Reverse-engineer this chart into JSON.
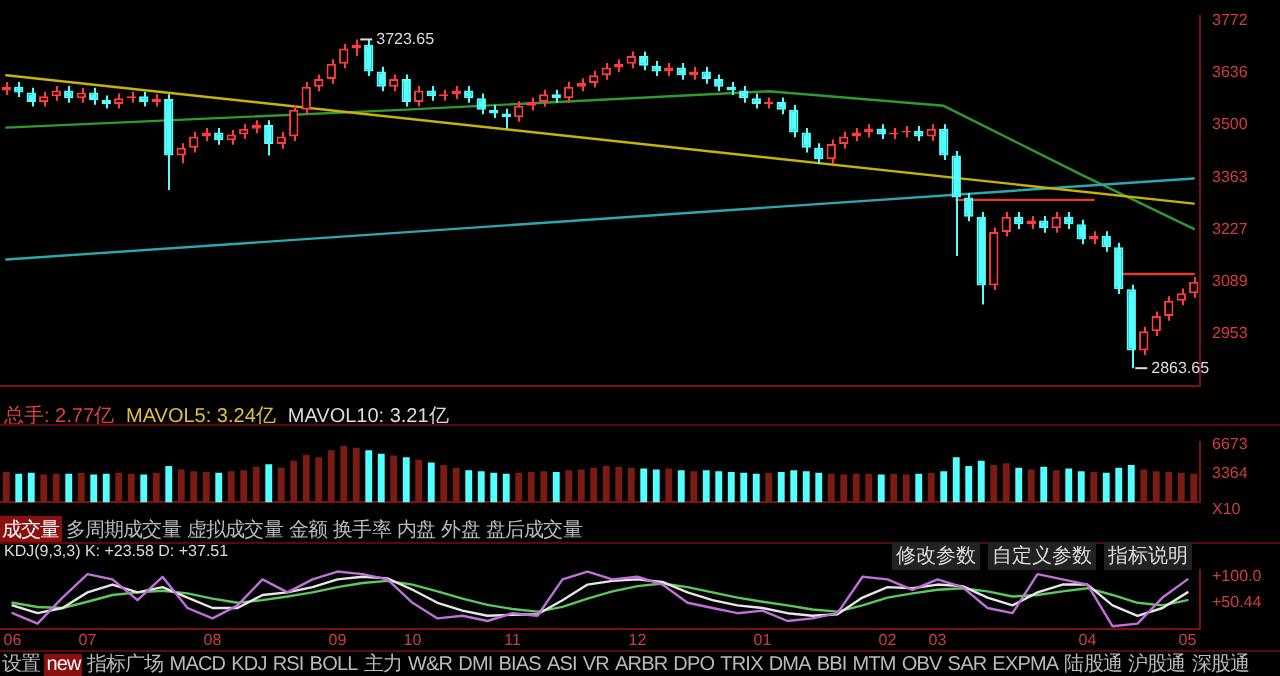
{
  "chart_data": [
    {
      "type": "candlestick",
      "tick_labels": "y",
      "ylim": [
        2816,
        3786
      ],
      "yticks": [
        3772,
        3636,
        3500,
        3363,
        3227,
        3089,
        2953
      ],
      "categories": [
        null,
        null,
        null,
        null,
        null,
        null,
        null,
        null,
        null,
        null,
        null,
        null,
        null,
        null,
        null,
        null,
        null,
        null,
        null,
        null,
        null,
        null,
        null,
        null,
        null,
        null,
        null,
        null,
        null,
        null,
        null,
        null,
        null,
        null,
        null,
        null,
        null,
        null,
        null,
        null,
        null,
        null,
        null,
        null,
        null,
        null,
        null,
        null,
        null,
        null,
        null,
        null,
        null,
        null,
        null,
        null,
        null,
        null,
        null,
        null,
        null,
        null,
        null,
        null,
        null,
        null,
        null,
        null,
        null,
        null,
        null,
        null,
        null,
        null,
        null,
        null,
        null,
        null,
        null,
        null,
        null,
        null,
        null,
        null,
        null,
        null,
        null,
        null,
        null,
        null,
        null,
        null,
        null,
        null,
        null,
        null
      ],
      "ohlc": [
        [
          3590,
          3612,
          3578,
          3600
        ],
        [
          3600,
          3612,
          3573,
          3585
        ],
        [
          3585,
          3597,
          3548,
          3560
        ],
        [
          3560,
          3587,
          3548,
          3575
        ],
        [
          3575,
          3602,
          3563,
          3590
        ],
        [
          3590,
          3602,
          3558,
          3570
        ],
        [
          3570,
          3597,
          3558,
          3585
        ],
        [
          3585,
          3597,
          3553,
          3565
        ],
        [
          3565,
          3577,
          3543,
          3555
        ],
        [
          3555,
          3582,
          3543,
          3570
        ],
        [
          3570,
          3587,
          3558,
          3575
        ],
        [
          3575,
          3587,
          3548,
          3560
        ],
        [
          3560,
          3580,
          3548,
          3568
        ],
        [
          3568,
          3580,
          3330,
          3420
        ],
        [
          3420,
          3452,
          3400,
          3440
        ],
        [
          3440,
          3482,
          3428,
          3470
        ],
        [
          3470,
          3492,
          3458,
          3480
        ],
        [
          3480,
          3492,
          3448,
          3460
        ],
        [
          3460,
          3487,
          3448,
          3475
        ],
        [
          3475,
          3502,
          3463,
          3490
        ],
        [
          3490,
          3512,
          3478,
          3500
        ],
        [
          3500,
          3512,
          3420,
          3450
        ],
        [
          3450,
          3482,
          3438,
          3470
        ],
        [
          3470,
          3552,
          3458,
          3540
        ],
        [
          3540,
          3612,
          3528,
          3600
        ],
        [
          3600,
          3632,
          3588,
          3620
        ],
        [
          3620,
          3672,
          3608,
          3660
        ],
        [
          3660,
          3712,
          3648,
          3700
        ],
        [
          3700,
          3723.65,
          3680,
          3710
        ],
        [
          3710,
          3722,
          3628,
          3640
        ],
        [
          3640,
          3652,
          3588,
          3600
        ],
        [
          3600,
          3632,
          3588,
          3620
        ],
        [
          3620,
          3632,
          3548,
          3560
        ],
        [
          3560,
          3602,
          3548,
          3590
        ],
        [
          3590,
          3602,
          3563,
          3575
        ],
        [
          3575,
          3592,
          3563,
          3580
        ],
        [
          3580,
          3602,
          3568,
          3590
        ],
        [
          3590,
          3602,
          3558,
          3570
        ],
        [
          3570,
          3582,
          3528,
          3540
        ],
        [
          3540,
          3552,
          3518,
          3530
        ],
        [
          3530,
          3542,
          3490,
          3520
        ],
        [
          3520,
          3562,
          3508,
          3550
        ],
        [
          3550,
          3572,
          3538,
          3560
        ],
        [
          3560,
          3592,
          3548,
          3580
        ],
        [
          3580,
          3592,
          3558,
          3570
        ],
        [
          3570,
          3612,
          3558,
          3600
        ],
        [
          3600,
          3622,
          3588,
          3610
        ],
        [
          3610,
          3642,
          3598,
          3630
        ],
        [
          3630,
          3662,
          3618,
          3650
        ],
        [
          3650,
          3672,
          3638,
          3660
        ],
        [
          3660,
          3692,
          3648,
          3680
        ],
        [
          3680,
          3692,
          3643,
          3655
        ],
        [
          3655,
          3667,
          3628,
          3640
        ],
        [
          3640,
          3662,
          3628,
          3650
        ],
        [
          3650,
          3662,
          3618,
          3630
        ],
        [
          3630,
          3652,
          3618,
          3640
        ],
        [
          3640,
          3652,
          3608,
          3620
        ],
        [
          3620,
          3632,
          3588,
          3600
        ],
        [
          3600,
          3612,
          3578,
          3590
        ],
        [
          3590,
          3602,
          3558,
          3570
        ],
        [
          3570,
          3582,
          3543,
          3555
        ],
        [
          3555,
          3572,
          3543,
          3560
        ],
        [
          3560,
          3572,
          3528,
          3540
        ],
        [
          3540,
          3552,
          3468,
          3480
        ],
        [
          3480,
          3492,
          3428,
          3440
        ],
        [
          3440,
          3452,
          3398,
          3410
        ],
        [
          3410,
          3462,
          3398,
          3450
        ],
        [
          3450,
          3482,
          3438,
          3470
        ],
        [
          3470,
          3492,
          3458,
          3480
        ],
        [
          3480,
          3502,
          3468,
          3490
        ],
        [
          3490,
          3502,
          3463,
          3475
        ],
        [
          3475,
          3492,
          3463,
          3480
        ],
        [
          3480,
          3497,
          3468,
          3485
        ],
        [
          3485,
          3497,
          3458,
          3470
        ],
        [
          3470,
          3502,
          3458,
          3490
        ],
        [
          3490,
          3502,
          3408,
          3420
        ],
        [
          3420,
          3432,
          3157,
          3310
        ],
        [
          3310,
          3322,
          3248,
          3260
        ],
        [
          3260,
          3272,
          3030,
          3080
        ],
        [
          3080,
          3232,
          3068,
          3220
        ],
        [
          3220,
          3272,
          3208,
          3260
        ],
        [
          3260,
          3272,
          3228,
          3240
        ],
        [
          3240,
          3262,
          3228,
          3250
        ],
        [
          3250,
          3262,
          3218,
          3230
        ],
        [
          3230,
          3272,
          3218,
          3260
        ],
        [
          3260,
          3272,
          3228,
          3240
        ],
        [
          3240,
          3252,
          3188,
          3200
        ],
        [
          3200,
          3222,
          3188,
          3210
        ],
        [
          3210,
          3222,
          3168,
          3180
        ],
        [
          3180,
          3192,
          3058,
          3070
        ],
        [
          3070,
          3082,
          2863.65,
          2910
        ],
        [
          2910,
          2972,
          2898,
          2960
        ],
        [
          2960,
          3012,
          2948,
          3000
        ],
        [
          3000,
          3052,
          2988,
          3040
        ],
        [
          3040,
          3072,
          3028,
          3060
        ],
        [
          3060,
          3102,
          3048,
          3090
        ]
      ],
      "series": [
        {
          "type": "line",
          "color": "#c8b400",
          "values": [
            3630,
            null,
            null,
            null,
            null,
            null,
            null,
            null,
            null,
            null,
            null,
            null,
            null,
            null,
            null,
            null,
            null,
            null,
            null,
            null,
            null,
            null,
            null,
            null,
            null,
            null,
            null,
            null,
            null,
            null,
            null,
            null,
            null,
            null,
            null,
            null,
            null,
            null,
            null,
            null,
            null,
            null,
            null,
            null,
            null,
            null,
            null,
            null,
            null,
            null,
            null,
            null,
            null,
            null,
            null,
            null,
            null,
            null,
            null,
            null,
            null,
            null,
            null,
            null,
            null,
            null,
            null,
            null,
            null,
            null,
            null,
            null,
            null,
            null,
            null,
            null,
            null,
            null,
            null,
            null,
            null,
            null,
            null,
            null,
            null,
            null,
            null,
            null,
            null,
            null,
            null,
            null,
            null,
            null,
            null,
            3294
          ]
        },
        {
          "type": "line",
          "color": "#2aa8b0",
          "values": [
            3148,
            null,
            null,
            null,
            null,
            null,
            null,
            null,
            null,
            null,
            null,
            null,
            null,
            null,
            null,
            null,
            null,
            null,
            null,
            null,
            null,
            null,
            null,
            null,
            null,
            null,
            null,
            null,
            null,
            null,
            null,
            null,
            null,
            null,
            null,
            null,
            null,
            null,
            null,
            null,
            null,
            null,
            null,
            null,
            null,
            null,
            null,
            null,
            null,
            null,
            null,
            null,
            null,
            null,
            null,
            null,
            null,
            null,
            null,
            null,
            null,
            null,
            null,
            null,
            null,
            null,
            null,
            null,
            null,
            null,
            null,
            null,
            null,
            null,
            null,
            null,
            null,
            null,
            null,
            null,
            null,
            null,
            null,
            null,
            null,
            null,
            null,
            null,
            null,
            null,
            null,
            null,
            null,
            null,
            null,
            3360
          ]
        },
        {
          "type": "line",
          "color": "#2f9a2f",
          "values": [
            3493,
            null,
            null,
            null,
            null,
            null,
            null,
            null,
            null,
            null,
            null,
            null,
            null,
            null,
            null,
            null,
            null,
            null,
            null,
            null,
            null,
            null,
            null,
            null,
            null,
            null,
            null,
            null,
            null,
            null,
            null,
            null,
            3540,
            null,
            null,
            null,
            null,
            null,
            null,
            null,
            null,
            null,
            null,
            null,
            null,
            null,
            null,
            null,
            null,
            null,
            null,
            null,
            null,
            null,
            null,
            null,
            null,
            null,
            null,
            null,
            null,
            3588,
            null,
            null,
            null,
            null,
            null,
            null,
            null,
            null,
            null,
            null,
            null,
            null,
            null,
            3550,
            null,
            null,
            null,
            null,
            null,
            null,
            null,
            null,
            null,
            null,
            3370,
            null,
            null,
            null,
            null,
            null,
            null,
            null,
            null,
            3228
          ]
        },
        {
          "type": "line",
          "color": "#e83a2a",
          "values": [
            null,
            null,
            null,
            null,
            null,
            null,
            null,
            null,
            null,
            null,
            null,
            null,
            null,
            null,
            null,
            null,
            null,
            null,
            null,
            null,
            null,
            null,
            null,
            null,
            null,
            null,
            null,
            null,
            null,
            null,
            null,
            null,
            null,
            null,
            null,
            null,
            null,
            null,
            null,
            null,
            null,
            null,
            null,
            null,
            null,
            null,
            null,
            null,
            null,
            null,
            null,
            null,
            null,
            null,
            null,
            null,
            null,
            null,
            null,
            null,
            null,
            null,
            null,
            null,
            null,
            null,
            null,
            null,
            null,
            null,
            null,
            null,
            null,
            null,
            null,
            null,
            3304,
            null,
            null,
            null,
            null,
            null,
            null,
            null,
            null,
            null,
            null,
            3304,
            null,
            null,
            null,
            null,
            null,
            null,
            null,
            null
          ]
        },
        {
          "type": "line",
          "color": "#e83a2a",
          "values": [
            null,
            null,
            null,
            null,
            null,
            null,
            null,
            null,
            null,
            null,
            null,
            null,
            null,
            null,
            null,
            null,
            null,
            null,
            null,
            null,
            null,
            null,
            null,
            null,
            null,
            null,
            null,
            null,
            null,
            null,
            null,
            null,
            null,
            null,
            null,
            null,
            null,
            null,
            null,
            null,
            null,
            null,
            null,
            null,
            null,
            null,
            null,
            null,
            null,
            null,
            null,
            null,
            null,
            null,
            null,
            null,
            null,
            null,
            null,
            null,
            null,
            null,
            null,
            null,
            null,
            null,
            null,
            null,
            null,
            null,
            null,
            null,
            null,
            null,
            null,
            null,
            null,
            null,
            null,
            null,
            null,
            null,
            null,
            null,
            null,
            null,
            null,
            null,
            null,
            3110,
            null,
            null,
            null,
            null,
            null,
            3110
          ]
        }
      ],
      "annotations": [
        "3723.65",
        "2863.65"
      ]
    },
    {
      "type": "bar",
      "tick_labels": "y",
      "ylim": [
        0,
        7000
      ],
      "yticks": [
        6673,
        3364
      ],
      "categories": [
        null,
        null,
        null,
        null,
        null,
        null,
        null,
        null,
        null,
        null,
        null,
        null,
        null,
        null,
        null,
        null,
        null,
        null,
        null,
        null,
        null,
        null,
        null,
        null,
        null,
        null,
        null,
        null,
        null,
        null,
        null,
        null,
        null,
        null,
        null,
        null,
        null,
        null,
        null,
        null,
        null,
        null,
        null,
        null,
        null,
        null,
        null,
        null,
        null,
        null,
        null,
        null,
        null,
        null,
        null,
        null,
        null,
        null,
        null,
        null,
        null,
        null,
        null,
        null,
        null,
        null,
        null,
        null,
        null,
        null,
        null,
        null,
        null,
        null,
        null,
        null,
        null,
        null,
        null,
        null,
        null,
        null,
        null,
        null,
        null,
        null,
        null,
        null,
        null,
        null,
        null,
        null,
        null,
        null,
        null,
        null
      ],
      "values": [
        3500,
        3300,
        3400,
        3200,
        3300,
        3300,
        3400,
        3200,
        3300,
        3400,
        3300,
        3200,
        3400,
        4200,
        3800,
        3600,
        3500,
        3400,
        3600,
        3700,
        4100,
        4400,
        4000,
        4800,
        5500,
        5200,
        6000,
        6500,
        6300,
        6000,
        5600,
        5400,
        5200,
        4900,
        4600,
        4300,
        4000,
        3700,
        3600,
        3400,
        3300,
        3400,
        3500,
        3600,
        3500,
        3700,
        3800,
        4000,
        4200,
        4100,
        4000,
        3900,
        3800,
        3900,
        3700,
        3600,
        3700,
        3600,
        3500,
        3400,
        3300,
        3400,
        3500,
        3700,
        3600,
        3400,
        3300,
        3200,
        3300,
        3300,
        3200,
        3300,
        3200,
        3300,
        3400,
        3600,
        5200,
        4200,
        4800,
        4300,
        4500,
        4000,
        3800,
        4100,
        3700,
        3900,
        3600,
        3500,
        3400,
        4000,
        4300,
        3800,
        3600,
        3500,
        3400,
        3300
      ],
      "colors": [
        "#7a1c14",
        "#54ffff",
        "#54ffff",
        "#7a1c14",
        "#7a1c14",
        "#54ffff",
        "#7a1c14",
        "#54ffff",
        "#54ffff",
        "#7a1c14",
        "#7a1c14",
        "#54ffff",
        "#7a1c14",
        "#54ffff",
        "#7a1c14",
        "#7a1c14",
        "#7a1c14",
        "#54ffff",
        "#7a1c14",
        "#7a1c14",
        "#7a1c14",
        "#54ffff",
        "#7a1c14",
        "#7a1c14",
        "#7a1c14",
        "#7a1c14",
        "#7a1c14",
        "#7a1c14",
        "#7a1c14",
        "#54ffff",
        "#54ffff",
        "#7a1c14",
        "#54ffff",
        "#7a1c14",
        "#54ffff",
        "#7a1c14",
        "#7a1c14",
        "#54ffff",
        "#54ffff",
        "#54ffff",
        "#54ffff",
        "#7a1c14",
        "#7a1c14",
        "#7a1c14",
        "#54ffff",
        "#7a1c14",
        "#7a1c14",
        "#7a1c14",
        "#7a1c14",
        "#7a1c14",
        "#7a1c14",
        "#54ffff",
        "#54ffff",
        "#7a1c14",
        "#54ffff",
        "#7a1c14",
        "#54ffff",
        "#54ffff",
        "#54ffff",
        "#54ffff",
        "#54ffff",
        "#7a1c14",
        "#54ffff",
        "#54ffff",
        "#54ffff",
        "#54ffff",
        "#7a1c14",
        "#7a1c14",
        "#7a1c14",
        "#7a1c14",
        "#54ffff",
        "#7a1c14",
        "#7a1c14",
        "#54ffff",
        "#7a1c14",
        "#54ffff",
        "#54ffff",
        "#54ffff",
        "#54ffff",
        "#7a1c14",
        "#7a1c14",
        "#54ffff",
        "#7a1c14",
        "#54ffff",
        "#7a1c14",
        "#54ffff",
        "#54ffff",
        "#7a1c14",
        "#54ffff",
        "#54ffff",
        "#54ffff",
        "#7a1c14",
        "#7a1c14",
        "#7a1c14",
        "#7a1c14",
        "#7a1c14"
      ],
      "annotations": [
        "总手: 2.77亿",
        "MAVOL5: 3.24亿",
        "MAVOL10: 3.21亿",
        "X10",
        "成交量",
        "多周期成交量",
        "虚拟成交量",
        "金额",
        "换手率",
        "内盘",
        "外盘",
        "盘后成交量"
      ]
    },
    {
      "type": "line",
      "ylim": [
        0,
        113
      ],
      "yticks": [
        {
          "value": 100,
          "label": "+100.0"
        },
        {
          "value": 50.44,
          "label": "+50.44"
        }
      ],
      "categories": [
        "06",
        null,
        null,
        "07",
        null,
        null,
        null,
        null,
        "08",
        null,
        null,
        null,
        null,
        "09",
        null,
        null,
        "10",
        null,
        null,
        null,
        "11",
        null,
        null,
        null,
        null,
        "12",
        null,
        null,
        null,
        null,
        "01",
        null,
        null,
        null,
        null,
        "02",
        null,
        "03",
        null,
        null,
        null,
        null,
        null,
        "04",
        null,
        null,
        null,
        "05"
      ],
      "series": [
        {
          "color": "#c070d8",
          "values": [
            30,
            10,
            60,
            105,
            95,
            55,
            100,
            40,
            20,
            45,
            95,
            70,
            95,
            110,
            105,
            95,
            50,
            20,
            25,
            15,
            30,
            25,
            95,
            110,
            95,
            100,
            85,
            50,
            40,
            30,
            35,
            15,
            20,
            30,
            100,
            95,
            75,
            95,
            80,
            40,
            30,
            105,
            95,
            85,
            5,
            10,
            60,
            95
          ]
        },
        {
          "color": "#e6e6e6",
          "values": [
            45,
            30,
            40,
            70,
            85,
            70,
            80,
            60,
            40,
            40,
            65,
            70,
            80,
            95,
            100,
            97,
            75,
            50,
            35,
            25,
            27,
            28,
            55,
            85,
            92,
            95,
            90,
            70,
            55,
            45,
            40,
            30,
            25,
            28,
            60,
            80,
            78,
            85,
            82,
            60,
            45,
            70,
            85,
            85,
            45,
            25,
            40,
            70
          ]
        },
        {
          "color": "#5cc85c",
          "values": [
            50,
            42,
            40,
            52,
            65,
            70,
            73,
            68,
            58,
            50,
            55,
            62,
            70,
            80,
            88,
            92,
            85,
            72,
            58,
            46,
            38,
            33,
            42,
            58,
            72,
            82,
            87,
            80,
            70,
            60,
            52,
            45,
            37,
            33,
            45,
            60,
            68,
            75,
            78,
            72,
            62,
            65,
            72,
            78,
            65,
            50,
            45,
            55
          ]
        }
      ],
      "annotations": [
        "KDJ(9,3,3) K: +23.58  D: +37.51",
        "修改参数",
        "自定义参数",
        "指标说明",
        "设置",
        "new",
        "指标广场",
        "MACD",
        "KDJ",
        "RSI",
        "BOLL",
        "主力",
        "W&R",
        "DMI",
        "BIAS",
        "ASI",
        "VR",
        "ARBR",
        "DPO",
        "TRIX",
        "DMA",
        "BBI",
        "MTM",
        "OBV",
        "SAR",
        "EXPMA",
        "陆股通",
        "沪股通",
        "深股通"
      ]
    }
  ]
}
